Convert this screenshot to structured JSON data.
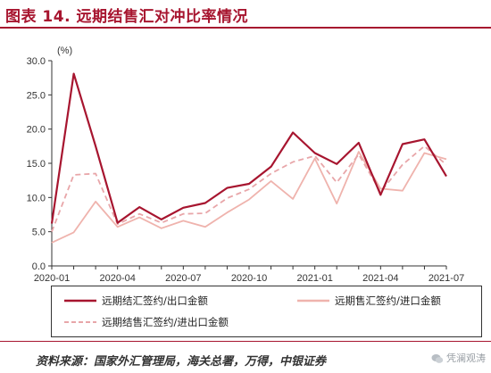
{
  "title": "图表 14. 远期结售汇对冲比率情况",
  "source": "资料来源：国家外汇管理局，海关总署，万得，中银证券",
  "watermark": "凭澜观涛",
  "colors": {
    "title": "#a7152f",
    "series": [
      "#a7152f",
      "#efb3ad",
      "#e8a6a9"
    ]
  },
  "chart_data": {
    "type": "line",
    "unit": "(%)",
    "ylim": [
      0,
      30
    ],
    "yticks": [
      "0.0",
      "5.0",
      "10.0",
      "15.0",
      "20.0",
      "25.0",
      "30.0"
    ],
    "x": [
      "2020-01",
      "2020-02",
      "2020-03",
      "2020-04",
      "2020-05",
      "2020-06",
      "2020-07",
      "2020-08",
      "2020-09",
      "2020-10",
      "2020-11",
      "2020-12",
      "2021-01",
      "2021-02",
      "2021-03",
      "2021-04",
      "2021-05",
      "2021-06",
      "2021-07"
    ],
    "xtick_labels": [
      "2020-01",
      "2020-04",
      "2020-07",
      "2020-10",
      "2021-01",
      "2021-04",
      "2021-07"
    ],
    "grid": false,
    "legend_position": "bottom",
    "series": [
      {
        "name": "远期结汇签约/出口金额",
        "style": "solid",
        "values": [
          6.2,
          28.1,
          17.5,
          6.3,
          8.6,
          6.8,
          8.5,
          9.2,
          11.4,
          12.0,
          14.5,
          19.5,
          16.5,
          14.9,
          18.0,
          10.4,
          17.8,
          18.5,
          13.1
        ]
      },
      {
        "name": "远期售汇签约/进口金额",
        "style": "solid",
        "values": [
          3.4,
          4.9,
          9.4,
          5.7,
          7.1,
          5.5,
          6.6,
          5.7,
          7.8,
          9.7,
          12.4,
          9.8,
          15.7,
          9.1,
          16.7,
          11.3,
          11.0,
          16.5,
          15.6
        ]
      },
      {
        "name": "远期结售汇签约/进出口金额",
        "style": "dashed",
        "values": [
          5.0,
          13.3,
          13.5,
          6.1,
          7.6,
          6.3,
          7.6,
          7.7,
          9.9,
          11.2,
          13.5,
          15.2,
          16.1,
          12.2,
          16.3,
          10.8,
          14.8,
          17.5,
          14.8
        ]
      }
    ]
  }
}
